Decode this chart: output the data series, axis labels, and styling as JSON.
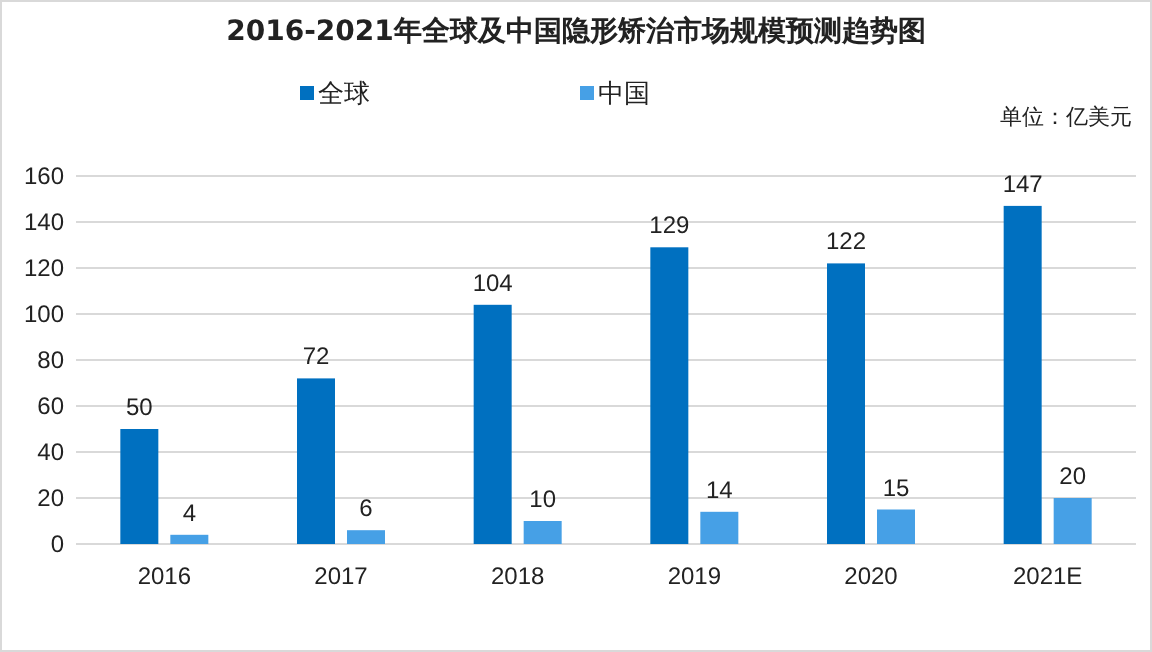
{
  "chart_data": {
    "type": "bar",
    "title": "2016-2021年全球及中国隐形矫治市场规模预测趋势图",
    "categories": [
      "2016",
      "2017",
      "2018",
      "2019",
      "2020",
      "2021E"
    ],
    "series": [
      {
        "name": "全球",
        "color": "#0070c0",
        "values": [
          50,
          72,
          104,
          129,
          122,
          147
        ]
      },
      {
        "name": "中国",
        "color": "#46a0e6",
        "values": [
          4,
          6,
          10,
          14,
          15,
          20
        ]
      }
    ],
    "ylim": [
      0,
      160
    ],
    "yticks": [
      0,
      20,
      40,
      60,
      80,
      100,
      120,
      140,
      160
    ],
    "grid": "y",
    "legend": "top",
    "data_labels": true,
    "annotations": [
      "单位：亿美元"
    ]
  }
}
